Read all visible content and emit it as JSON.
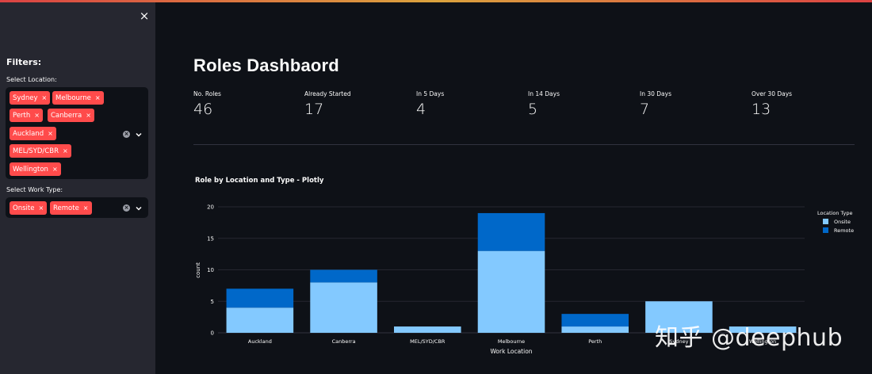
{
  "sidebar": {
    "filters_title": "Filters:",
    "location_label": "Select Location:",
    "locations": [
      "Sydney",
      "Melbourne",
      "Perth",
      "Canberra",
      "Auckland",
      "MEL/SYD/CBR",
      "Wellington"
    ],
    "work_type_label": "Select Work Type:",
    "work_types": [
      "Onsite",
      "Remote"
    ],
    "tag_remove_glyph": "×",
    "close_glyph": "×"
  },
  "main": {
    "title": "Roles Dashbaord",
    "metrics": [
      {
        "label": "No. Roles",
        "value": "46"
      },
      {
        "label": "Already Started",
        "value": "17"
      },
      {
        "label": "In 5 Days",
        "value": "4"
      },
      {
        "label": "In 14 Days",
        "value": "5"
      },
      {
        "label": "In 30 Days",
        "value": "7"
      },
      {
        "label": "Over 30 Days",
        "value": "13"
      }
    ],
    "chart_title": "Role by Location and Type - Plotly"
  },
  "chart_data": {
    "type": "bar",
    "stacked": true,
    "categories": [
      "Auckland",
      "Canberra",
      "MEL/SYD/CBR",
      "Melbourne",
      "Perth",
      "Sydney",
      "Wellington"
    ],
    "series": [
      {
        "name": "Onsite",
        "color": "#83c9ff",
        "values": [
          4,
          8,
          1,
          13,
          1,
          5,
          1
        ]
      },
      {
        "name": "Remote",
        "color": "#0068c9",
        "values": [
          3,
          2,
          0,
          6,
          2,
          0,
          0
        ]
      }
    ],
    "xlabel": "Work Location",
    "ylabel": "count",
    "ylim": [
      0,
      20
    ],
    "yticks": [
      0,
      5,
      10,
      15,
      20
    ],
    "legend_title": "Location Type",
    "legend_position": "top-right",
    "grid": true
  },
  "watermark": "知乎 @deephub"
}
